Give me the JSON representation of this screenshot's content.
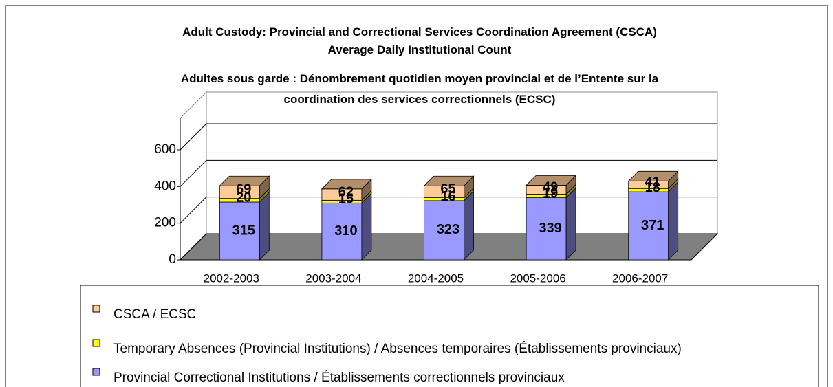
{
  "chart_data": {
    "type": "bar3d_stacked",
    "title": "Adult Custody: Provincial and Correctional Services Coordination Agreement (CSCA) Average Daily Institutional Count",
    "subtitle": "Adultes sous garde : Dénombrement quotidien moyen provincial et de l’Entente sur la coordination des services correctionnels (ECSC)",
    "categories": [
      "2002-2003",
      "2003-2004",
      "2004-2005",
      "2005-2006",
      "2006-2007"
    ],
    "series": [
      {
        "name": "Provincial Correctional Institutions / Établissements correctionnels provinciaux",
        "color": "#9999ff",
        "values": [
          315,
          310,
          323,
          339,
          371
        ]
      },
      {
        "name": "Temporary Absences (Provincial Institutions) / Absences temporaires (Établissements provinciaux)",
        "color": "#ffff00",
        "values": [
          20,
          15,
          16,
          19,
          18
        ]
      },
      {
        "name": "CSCA / ECSC",
        "color": "#ffcc99",
        "values": [
          69,
          62,
          65,
          49,
          41
        ]
      }
    ],
    "ylim": [
      0,
      600
    ],
    "yticks": [
      0,
      200,
      400,
      600
    ]
  }
}
